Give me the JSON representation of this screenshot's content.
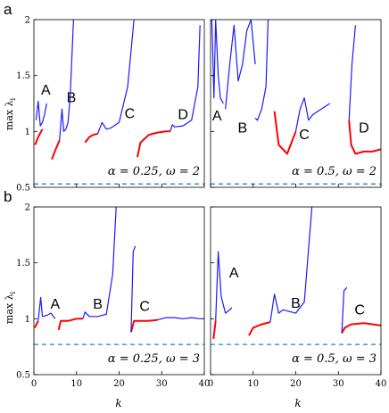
{
  "figure": {
    "shared_ylabel": "max λ",
    "shared_ylabel_sub": "i",
    "shared_xlabel": "k"
  },
  "colors": {
    "stable": "#1a1aff",
    "unstable": "#ff0000",
    "threshold": "#3a8fc8",
    "axis": "#000000"
  },
  "chart_data": [
    {
      "type": "line",
      "row_label": "a",
      "caption": "α = 0.25, ω = 2",
      "xlim": [
        0,
        40
      ],
      "ylim": [
        0.5,
        2
      ],
      "xticks": [],
      "yticks": [
        0.5,
        1,
        1.5,
        2
      ],
      "threshold": 0.53,
      "grid": false,
      "series": [
        {
          "color": "red",
          "x": [
            0.3,
            1,
            2
          ],
          "y": [
            0.88,
            0.95,
            1.02
          ]
        },
        {
          "color": "blue",
          "x": [
            0.5,
            1,
            1.5,
            2,
            2.5,
            3
          ],
          "y": [
            1.1,
            1.27,
            1.05,
            1.08,
            1.15,
            1.25
          ]
        },
        {
          "color": "red",
          "x": [
            4.2,
            5,
            6
          ],
          "y": [
            0.75,
            0.83,
            0.92
          ]
        },
        {
          "color": "blue",
          "x": [
            6,
            6.6,
            7,
            7.5,
            8,
            8.5,
            9.3
          ],
          "y": [
            0.92,
            1.2,
            1.0,
            1.02,
            1.08,
            1.3,
            2.0
          ]
        },
        {
          "color": "red",
          "x": [
            12,
            13,
            14,
            15
          ],
          "y": [
            0.9,
            0.95,
            0.97,
            0.98
          ]
        },
        {
          "color": "blue",
          "x": [
            15,
            16,
            17,
            18,
            20,
            22,
            23.5
          ],
          "y": [
            0.98,
            1.08,
            1.02,
            1.03,
            1.08,
            1.4,
            2.0
          ]
        },
        {
          "color": "red",
          "x": [
            24.3,
            25,
            27,
            29,
            31,
            32
          ],
          "y": [
            0.77,
            0.9,
            0.97,
            0.99,
            1.0,
            1.0
          ]
        },
        {
          "color": "blue",
          "x": [
            32,
            32.5,
            33,
            35,
            37,
            38.5,
            39
          ],
          "y": [
            1.0,
            1.06,
            1.04,
            1.05,
            1.1,
            1.4,
            1.95
          ]
        }
      ],
      "labels": [
        {
          "text": "A",
          "x": 2.8,
          "y": 1.33
        },
        {
          "text": "B",
          "x": 8.8,
          "y": 1.26
        },
        {
          "text": "C",
          "x": 22.5,
          "y": 1.12
        },
        {
          "text": "D",
          "x": 35,
          "y": 1.11
        }
      ]
    },
    {
      "type": "line",
      "row_label": "",
      "caption": "α = 0.5, ω = 2",
      "xlim": [
        0,
        40
      ],
      "ylim": [
        0.5,
        2
      ],
      "xticks": [],
      "yticks": [],
      "threshold": 0.53,
      "grid": false,
      "series": [
        {
          "color": "blue",
          "x": [
            0.3,
            0.8,
            1.2,
            1.8,
            2.3,
            3
          ],
          "y": [
            2.0,
            1.3,
            2.0,
            1.5,
            1.3,
            1.25
          ]
        },
        {
          "color": "blue",
          "x": [
            3.5,
            4.5,
            5.5,
            6.5,
            7.5,
            8.5,
            9.5,
            10.5
          ],
          "y": [
            1.2,
            1.6,
            1.95,
            1.45,
            1.6,
            1.9,
            2.0,
            1.6
          ]
        },
        {
          "color": "blue",
          "x": [
            10.5,
            11,
            12,
            13,
            13.5
          ],
          "y": [
            1.12,
            1.1,
            1.2,
            1.4,
            2.0
          ]
        },
        {
          "color": "red",
          "x": [
            15,
            16,
            18,
            19,
            20
          ],
          "y": [
            1.18,
            0.88,
            0.8,
            0.9,
            1.0
          ]
        },
        {
          "color": "blue",
          "x": [
            20,
            21,
            22,
            23,
            24,
            26,
            28
          ],
          "y": [
            1.0,
            1.2,
            1.3,
            1.1,
            1.15,
            1.2,
            1.25
          ]
        },
        {
          "color": "red",
          "x": [
            32.5,
            33,
            34,
            36,
            38,
            40
          ],
          "y": [
            1.1,
            0.88,
            0.8,
            0.82,
            0.82,
            0.84
          ]
        },
        {
          "color": "blue",
          "x": [
            32.5,
            33.2,
            34
          ],
          "y": [
            1.1,
            1.6,
            1.95
          ]
        }
      ],
      "labels": [
        {
          "text": "A",
          "x": 1.5,
          "y": 1.1
        },
        {
          "text": "B",
          "x": 7.5,
          "y": 0.99
        },
        {
          "text": "C",
          "x": 22,
          "y": 0.93
        },
        {
          "text": "D",
          "x": 36,
          "y": 0.99
        }
      ]
    },
    {
      "type": "line",
      "row_label": "b",
      "caption": "α = 0.25, ω = 3",
      "xlim": [
        0,
        40
      ],
      "ylim": [
        0.5,
        2
      ],
      "xticks": [
        0,
        10,
        20,
        30,
        40
      ],
      "yticks": [
        0.5,
        1,
        1.5,
        2
      ],
      "threshold": 0.77,
      "grid": false,
      "series": [
        {
          "color": "red",
          "x": [
            0.2,
            1
          ],
          "y": [
            0.92,
            0.98
          ]
        },
        {
          "color": "blue",
          "x": [
            1,
            1.6,
            2,
            3,
            4,
            5
          ],
          "y": [
            0.98,
            1.19,
            1.02,
            1.03,
            1.05,
            1.0
          ]
        },
        {
          "color": "red",
          "x": [
            5.8,
            6.3,
            8,
            10,
            11.5
          ],
          "y": [
            0.9,
            0.98,
            0.98,
            1.0,
            1.0
          ]
        },
        {
          "color": "blue",
          "x": [
            11.5,
            12,
            13,
            15,
            17,
            18.5,
            19.3
          ],
          "y": [
            1.0,
            1.06,
            1.02,
            1.02,
            1.04,
            1.4,
            2.0
          ]
        },
        {
          "color": "red",
          "x": [
            22.8,
            23.5,
            25,
            27,
            29
          ],
          "y": [
            0.88,
            0.98,
            0.98,
            0.98,
            0.99
          ]
        },
        {
          "color": "blue",
          "x": [
            22.8,
            23.3,
            23.8
          ],
          "y": [
            0.88,
            1.6,
            1.65
          ]
        },
        {
          "color": "blue",
          "x": [
            29,
            31,
            33,
            35,
            37,
            39,
            40
          ],
          "y": [
            0.99,
            1.01,
            1.01,
            1.0,
            1.01,
            1.0,
            1.0
          ]
        }
      ],
      "labels": [
        {
          "text": "A",
          "x": 5,
          "y": 1.09
        },
        {
          "text": "B",
          "x": 15,
          "y": 1.09
        },
        {
          "text": "C",
          "x": 26,
          "y": 1.07
        }
      ]
    },
    {
      "type": "line",
      "row_label": "",
      "caption": "α = 0.5, ω = 3",
      "xlim": [
        0,
        40
      ],
      "ylim": [
        0.5,
        2
      ],
      "xticks": [
        0,
        10,
        20,
        30,
        40
      ],
      "yticks": [],
      "threshold": 0.77,
      "grid": false,
      "series": [
        {
          "color": "red",
          "x": [
            0.7,
            1.2
          ],
          "y": [
            0.82,
            0.98
          ]
        },
        {
          "color": "blue",
          "x": [
            1.2,
            1.8,
            2.5,
            3.5,
            4.5,
            5
          ],
          "y": [
            0.98,
            1.6,
            1.2,
            1.05,
            1.08,
            1.1
          ]
        },
        {
          "color": "red",
          "x": [
            9,
            10,
            12,
            14
          ],
          "y": [
            0.85,
            0.92,
            0.95,
            0.97
          ]
        },
        {
          "color": "blue",
          "x": [
            14,
            15,
            16,
            17,
            20,
            22,
            23.8
          ],
          "y": [
            0.97,
            1.22,
            1.05,
            1.08,
            1.05,
            1.15,
            2.0
          ]
        },
        {
          "color": "red",
          "x": [
            30.8,
            31.5,
            33,
            36,
            40
          ],
          "y": [
            0.87,
            0.92,
            0.95,
            0.96,
            0.94
          ]
        },
        {
          "color": "blue",
          "x": [
            30.8,
            31.3,
            32
          ],
          "y": [
            0.87,
            1.25,
            1.28
          ]
        }
      ],
      "labels": [
        {
          "text": "A",
          "x": 5.5,
          "y": 1.37
        },
        {
          "text": "B",
          "x": 20,
          "y": 1.1
        },
        {
          "text": "C",
          "x": 35,
          "y": 1.04
        }
      ]
    }
  ]
}
